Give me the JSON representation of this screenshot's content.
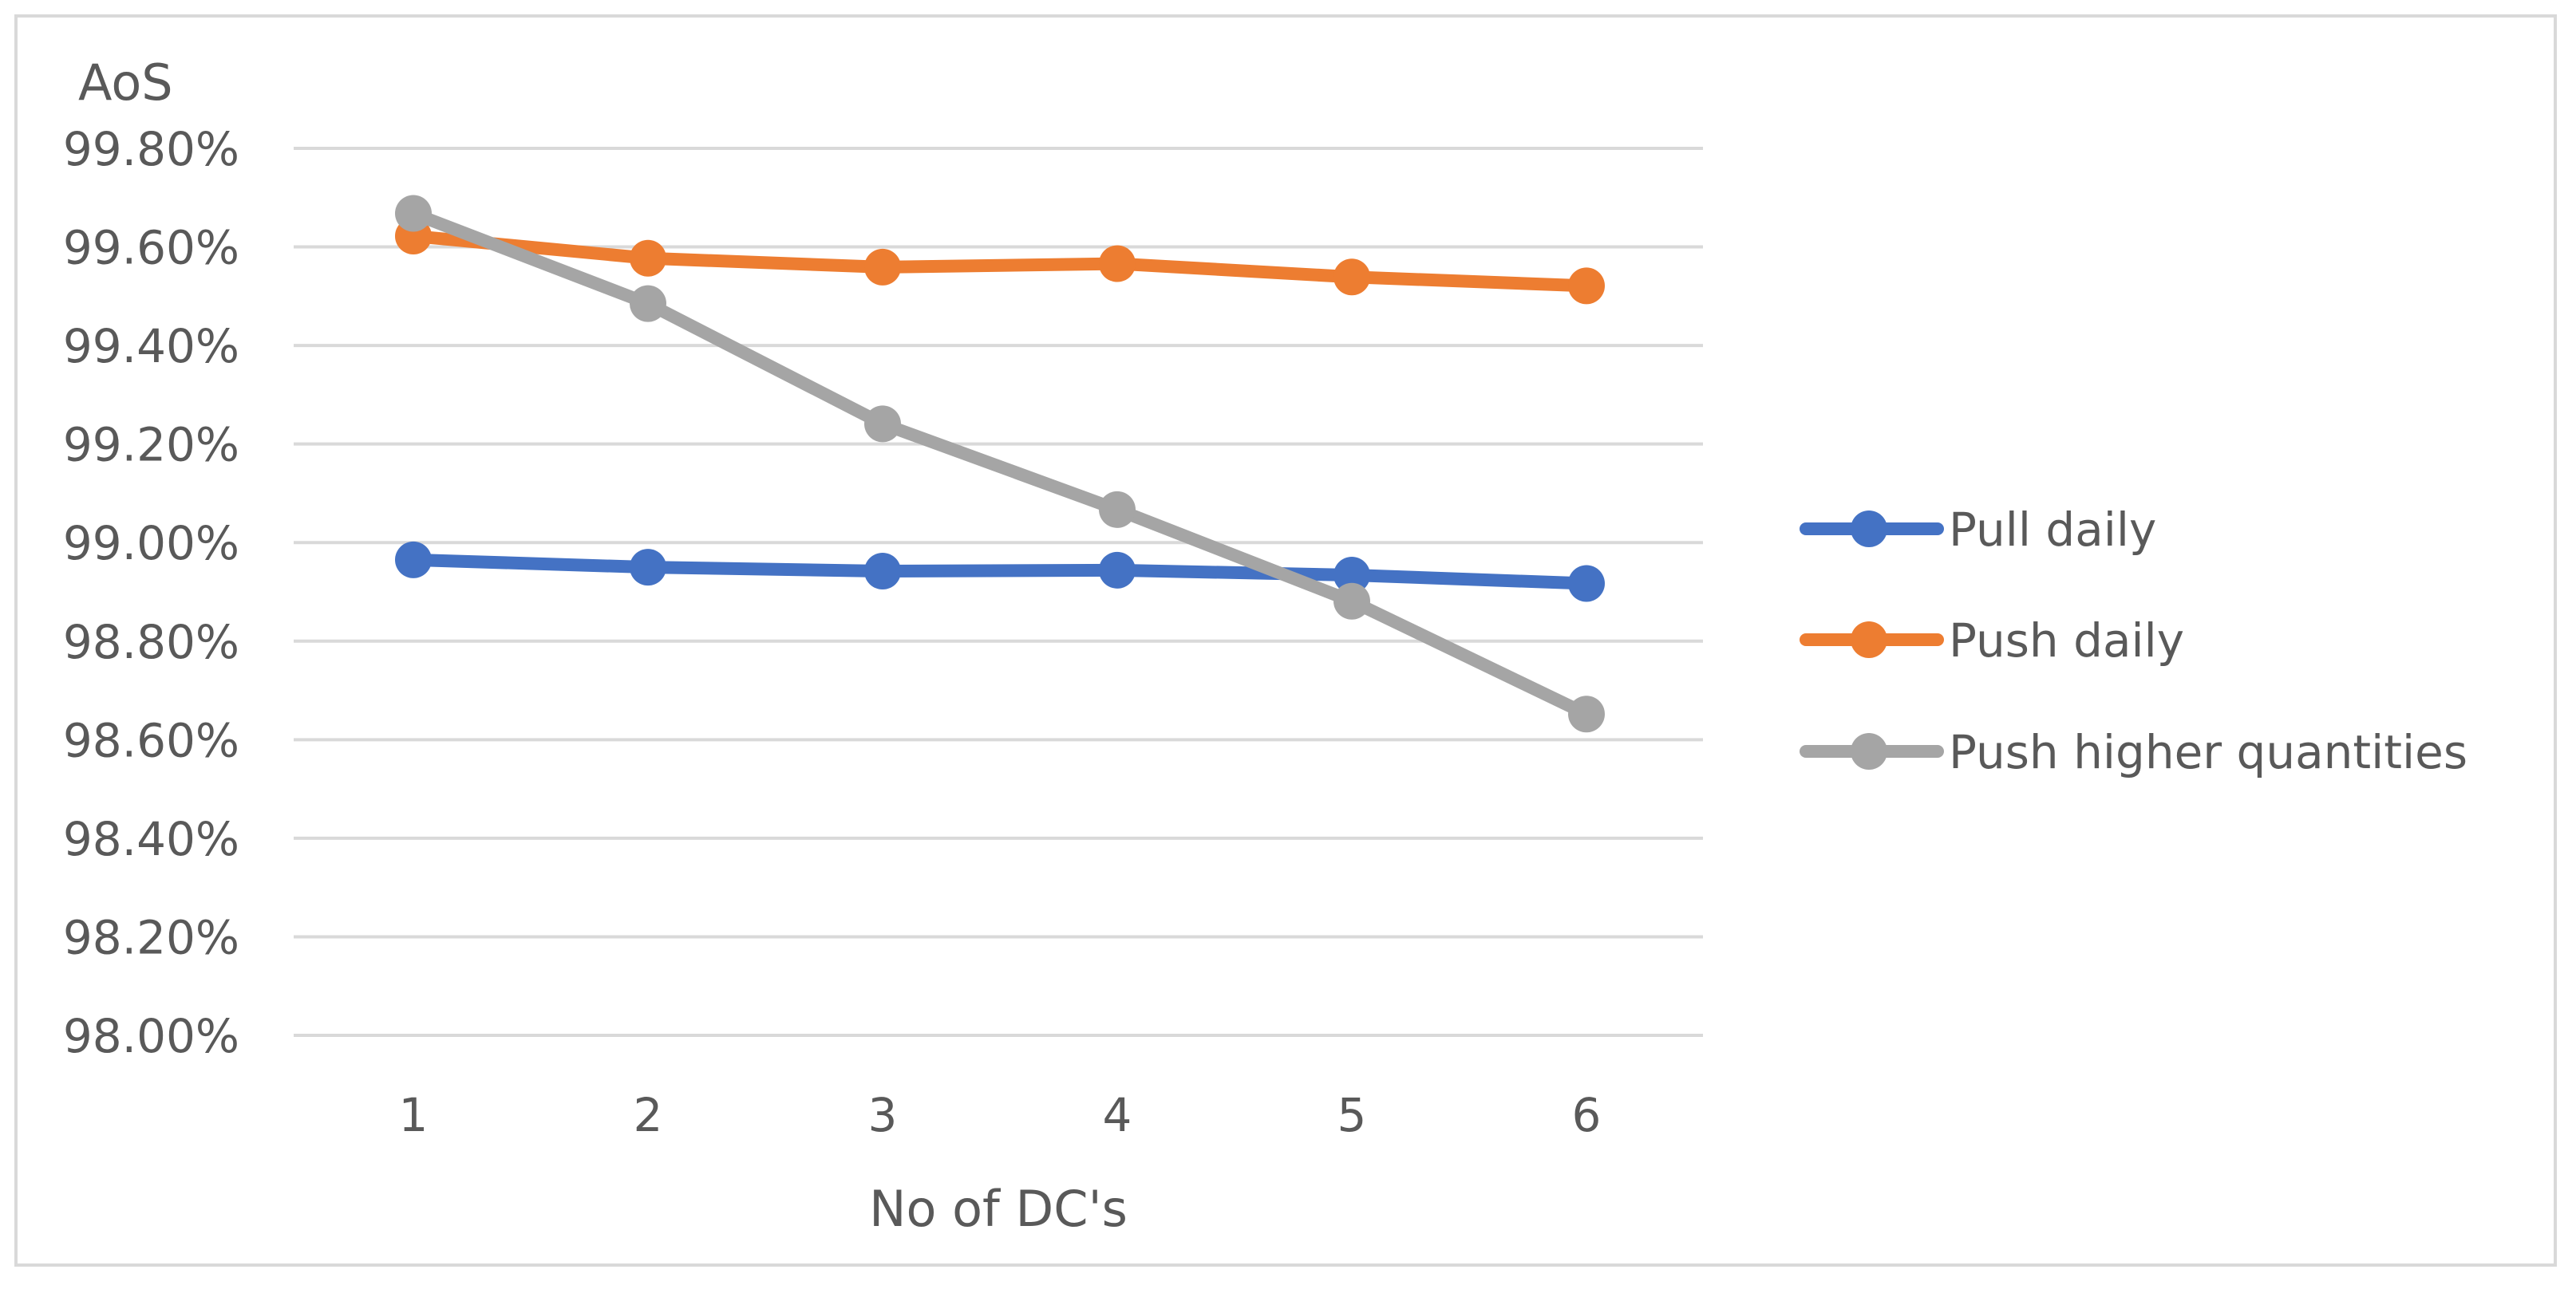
{
  "chart_data": {
    "type": "line",
    "ylabel": "AoS",
    "xlabel": "No of DC's",
    "x": [
      1,
      2,
      3,
      4,
      5,
      6
    ],
    "ylim": [
      0.98,
      0.998
    ],
    "yticks": [
      "99.80%",
      "99.60%",
      "99.40%",
      "99.20%",
      "99.00%",
      "98.80%",
      "98.60%",
      "98.40%",
      "98.20%",
      "98.00%"
    ],
    "xticks": [
      "1",
      "2",
      "3",
      "4",
      "5",
      "6"
    ],
    "grid": "horizontal",
    "legend_position": "right",
    "series": [
      {
        "name": "Pull daily",
        "color": "#4472c4",
        "values": [
          0.98965,
          0.9895,
          0.98942,
          0.98944,
          0.98934,
          0.98917
        ]
      },
      {
        "name": "Push daily",
        "color": "#ed7d31",
        "values": [
          0.99622,
          0.99577,
          0.99559,
          0.99566,
          0.99539,
          0.99521
        ]
      },
      {
        "name": "Push higher quantities",
        "color": "#a5a5a5",
        "values": [
          0.99668,
          0.99485,
          0.99241,
          0.99067,
          0.98881,
          0.98652
        ]
      }
    ]
  }
}
